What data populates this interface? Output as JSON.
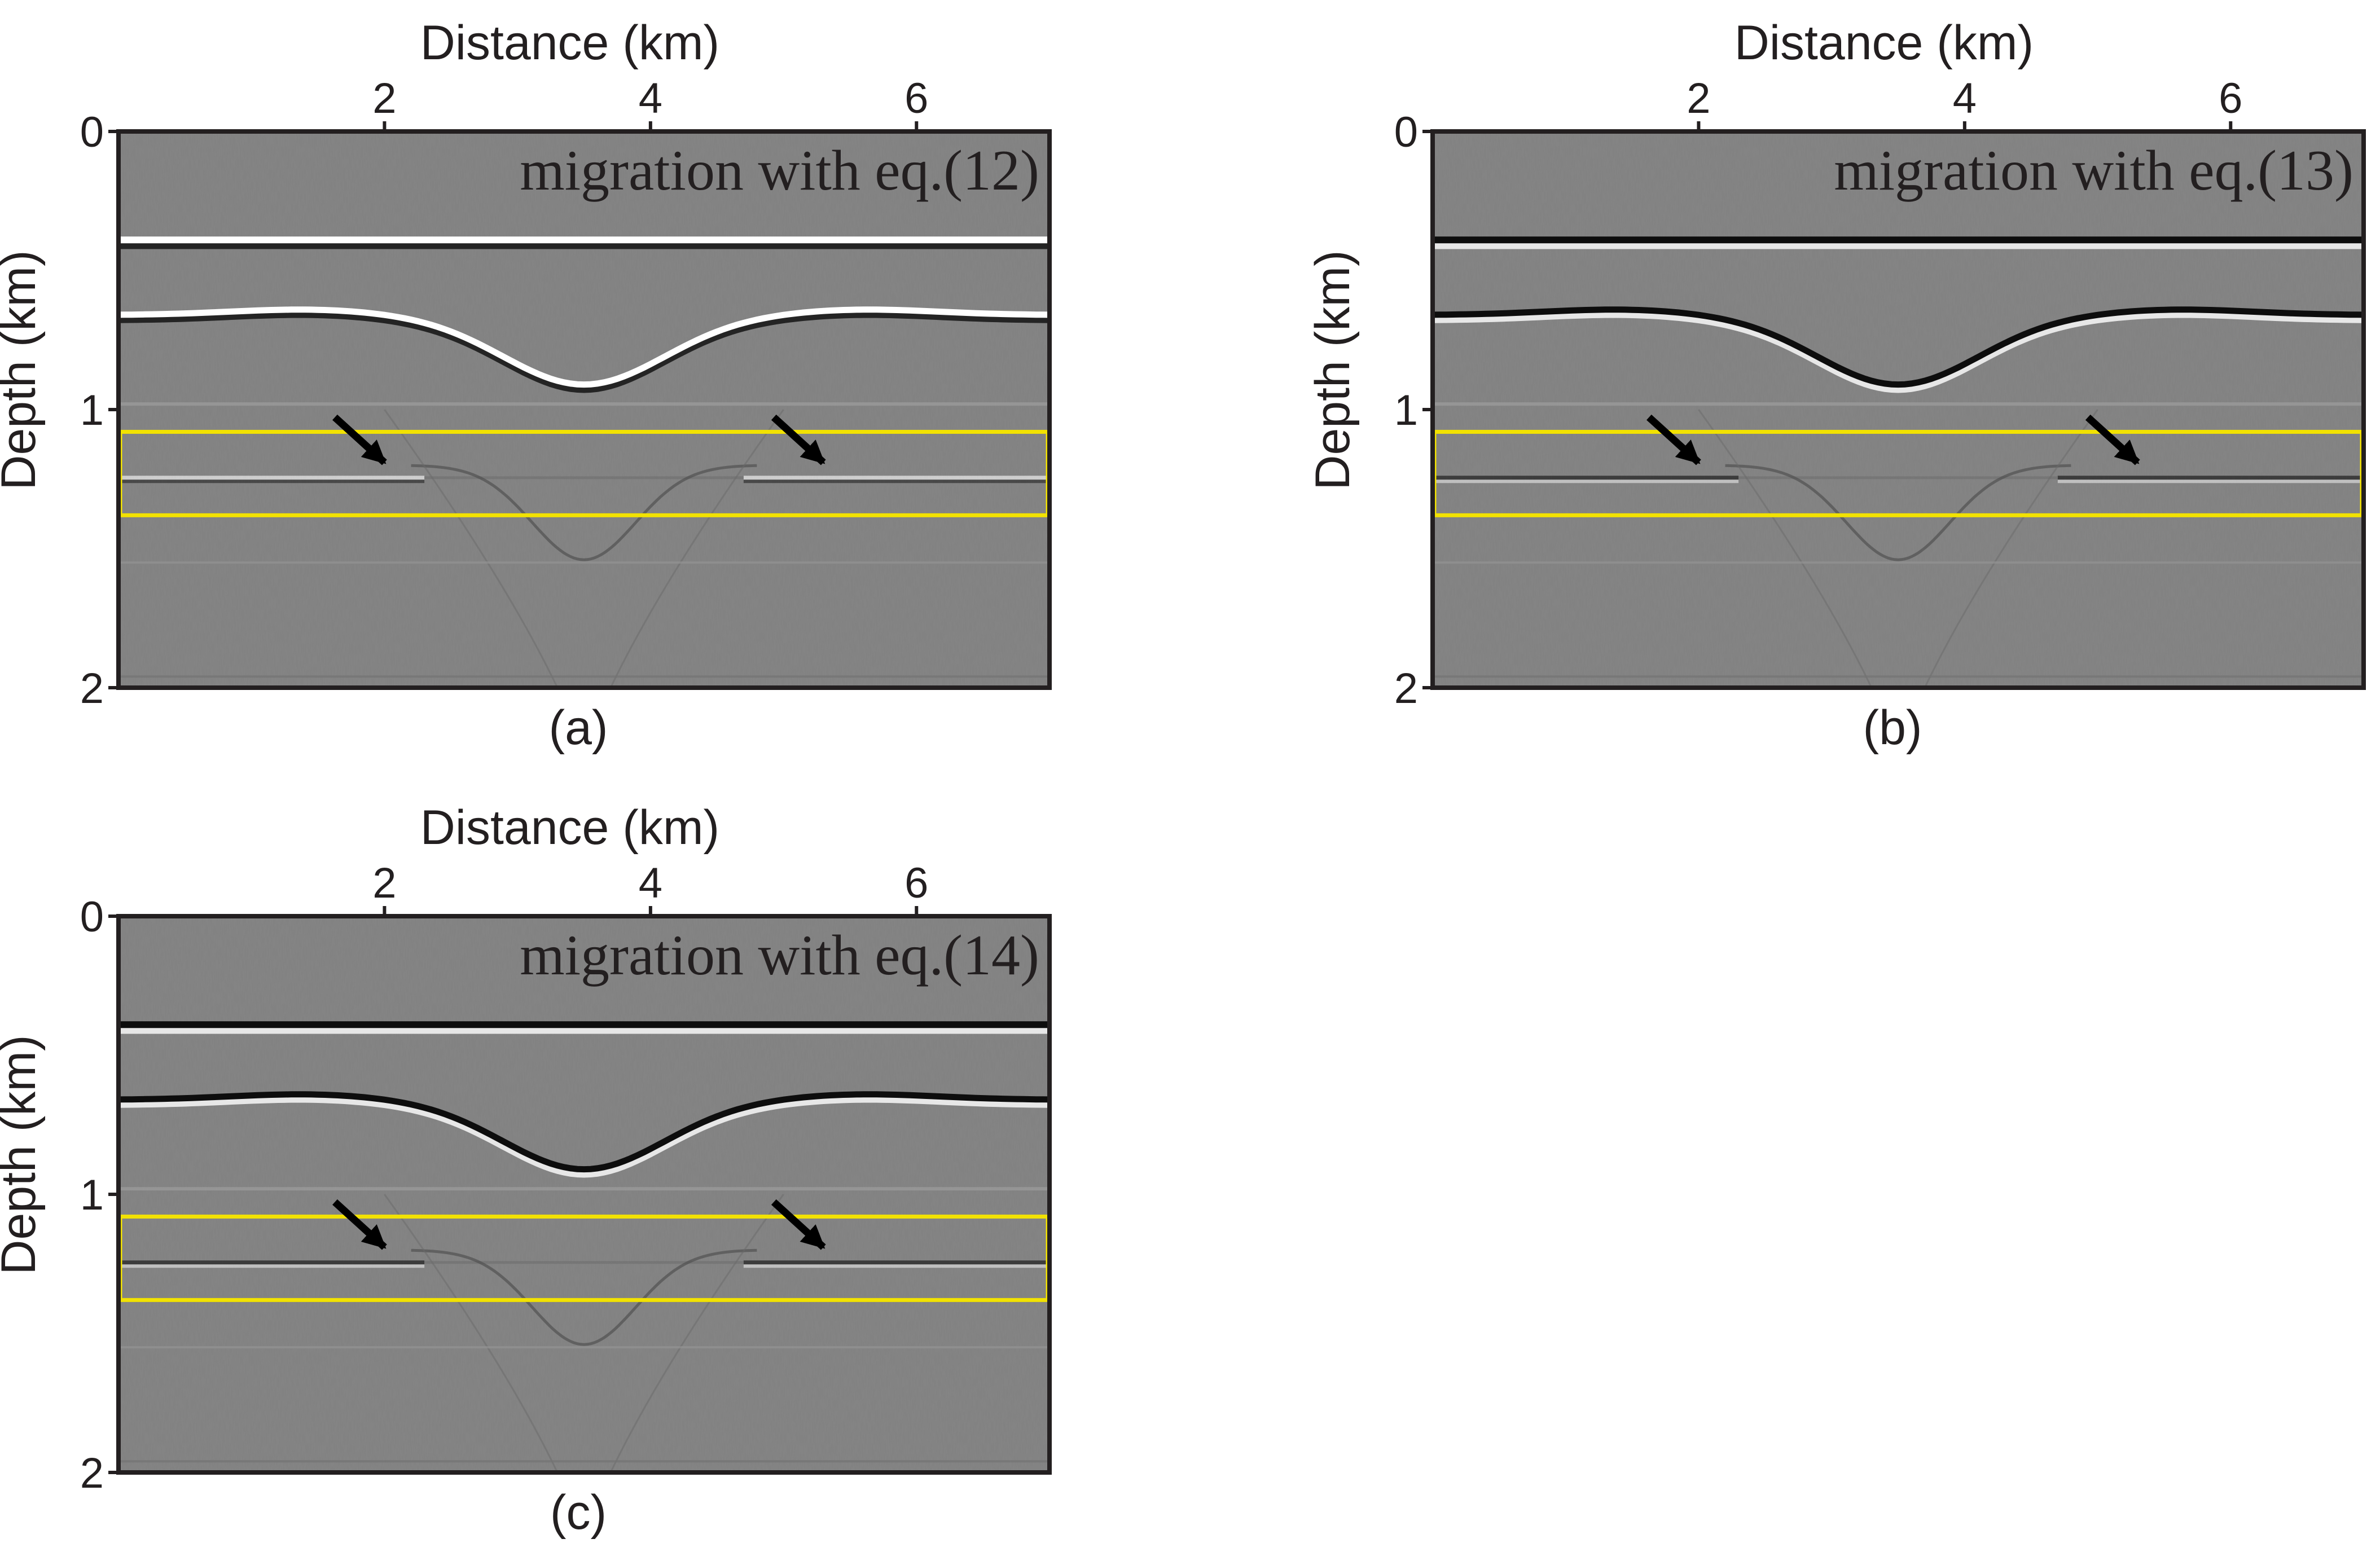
{
  "figure": {
    "colors": {
      "background": "#808080",
      "frame": "#231f20",
      "highlight_box": "#f2e200",
      "arrow": "#000000",
      "text": "#231f20"
    }
  },
  "chart_data": [
    {
      "type": "seismic-image",
      "panel_label": "(a)",
      "annotation": "migration with eq.(12)",
      "xlabel": "Distance (km)",
      "ylabel": "Depth (km)",
      "xlim": [
        0,
        7
      ],
      "ylim": [
        2,
        0
      ],
      "xticks": [
        2,
        4,
        6
      ],
      "xtick_labels": [
        "2",
        "4",
        "6"
      ],
      "yticks": [
        0,
        1,
        2
      ],
      "ytick_labels": [
        "0",
        "1",
        "2"
      ],
      "highlight_box": {
        "x_range": [
          0,
          7
        ],
        "depth_range": [
          1.08,
          1.38
        ]
      },
      "arrows": [
        {
          "tip_x": 2.0,
          "tip_depth": 1.19
        },
        {
          "tip_x": 5.3,
          "tip_depth": 1.19
        }
      ],
      "reflector_polarity": "white"
    },
    {
      "type": "seismic-image",
      "panel_label": "(b)",
      "annotation": "migration with eq.(13)",
      "xlabel": "Distance (km)",
      "ylabel": "Depth (km)",
      "xlim": [
        0,
        7
      ],
      "ylim": [
        2,
        0
      ],
      "xticks": [
        2,
        4,
        6
      ],
      "xtick_labels": [
        "2",
        "4",
        "6"
      ],
      "yticks": [
        0,
        1,
        2
      ],
      "ytick_labels": [
        "0",
        "1",
        "2"
      ],
      "highlight_box": {
        "x_range": [
          0,
          7
        ],
        "depth_range": [
          1.08,
          1.38
        ]
      },
      "arrows": [
        {
          "tip_x": 2.0,
          "tip_depth": 1.19
        },
        {
          "tip_x": 5.3,
          "tip_depth": 1.19
        }
      ],
      "reflector_polarity": "black"
    },
    {
      "type": "seismic-image",
      "panel_label": "(c)",
      "annotation": "migration with eq.(14)",
      "xlabel": "Distance (km)",
      "ylabel": "Depth (km)",
      "xlim": [
        0,
        7
      ],
      "ylim": [
        2,
        0
      ],
      "xticks": [
        2,
        4,
        6
      ],
      "xtick_labels": [
        "2",
        "4",
        "6"
      ],
      "yticks": [
        0,
        1,
        2
      ],
      "ytick_labels": [
        "0",
        "1",
        "2"
      ],
      "highlight_box": {
        "x_range": [
          0,
          7
        ],
        "depth_range": [
          1.08,
          1.38
        ]
      },
      "arrows": [
        {
          "tip_x": 2.0,
          "tip_depth": 1.19
        },
        {
          "tip_x": 5.3,
          "tip_depth": 1.19
        }
      ],
      "reflector_polarity": "black"
    }
  ]
}
